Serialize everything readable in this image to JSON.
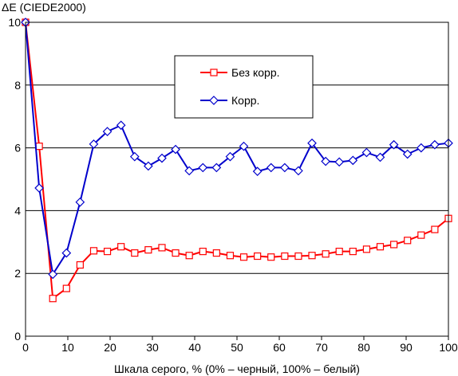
{
  "chart_data": {
    "type": "line",
    "ylabel": "ΔE (CIEDE2000)",
    "xlabel": "Шкала серого, % (0% – черный, 100% – белый)",
    "xlim": [
      0,
      100
    ],
    "ylim": [
      0,
      10
    ],
    "xticks": [
      0,
      10,
      20,
      30,
      40,
      50,
      60,
      70,
      80,
      90,
      100
    ],
    "yticks": [
      0,
      2,
      4,
      6,
      8,
      10
    ],
    "grid": "horizontal",
    "legend_position": "top-center",
    "x": [
      0,
      3.23,
      6.45,
      9.68,
      12.9,
      16.13,
      19.35,
      22.58,
      25.81,
      29.03,
      32.26,
      35.48,
      38.71,
      41.94,
      45.16,
      48.39,
      51.61,
      54.84,
      58.06,
      61.29,
      64.52,
      67.74,
      70.97,
      74.19,
      77.42,
      80.65,
      83.87,
      87.1,
      90.32,
      93.55,
      96.77,
      100
    ],
    "series": [
      {
        "name": "Без корр.",
        "color": "#ff0000",
        "marker": "square",
        "values": [
          10.0,
          6.05,
          1.2,
          1.52,
          2.27,
          2.72,
          2.7,
          2.85,
          2.65,
          2.75,
          2.82,
          2.65,
          2.57,
          2.7,
          2.65,
          2.57,
          2.52,
          2.55,
          2.52,
          2.55,
          2.55,
          2.57,
          2.62,
          2.7,
          2.7,
          2.77,
          2.85,
          2.92,
          3.05,
          3.22,
          3.4,
          3.75
        ]
      },
      {
        "name": "Корр.",
        "color": "#0000cc",
        "marker": "diamond",
        "values": [
          10.0,
          4.72,
          1.97,
          2.65,
          4.27,
          6.12,
          6.52,
          6.72,
          5.72,
          5.42,
          5.67,
          5.95,
          5.27,
          5.37,
          5.37,
          5.72,
          6.05,
          5.25,
          5.37,
          5.37,
          5.27,
          6.15,
          5.57,
          5.55,
          5.6,
          5.85,
          5.7,
          6.1,
          5.8,
          6.0,
          6.1,
          6.15
        ]
      }
    ]
  }
}
